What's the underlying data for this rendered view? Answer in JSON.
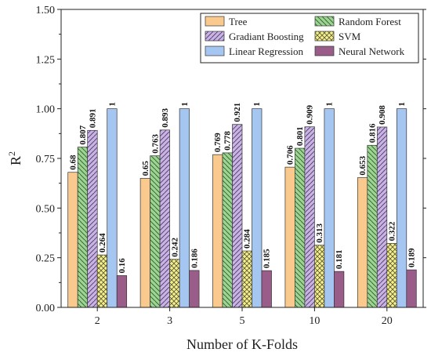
{
  "chart_data": {
    "type": "bar",
    "title": "",
    "xlabel": "Number of K-Folds",
    "ylabel": "R",
    "ylabel_sup": "2",
    "categories": [
      "2",
      "3",
      "5",
      "10",
      "20"
    ],
    "ylim": [
      0.0,
      1.5
    ],
    "yticks": [
      "0.00",
      "0.25",
      "0.50",
      "0.75",
      "1.00",
      "1.25",
      "1.50"
    ],
    "legend_position": "top-right",
    "grid": false,
    "series": [
      {
        "name": "Tree",
        "values": [
          0.68,
          0.65,
          0.769,
          0.706,
          0.653
        ],
        "labels": [
          "0.68",
          "0.65",
          "0.769",
          "0.706",
          "0.653"
        ],
        "color": "#f9c98e",
        "pattern": "none"
      },
      {
        "name": "Random Forest",
        "values": [
          0.807,
          0.763,
          0.778,
          0.801,
          0.816
        ],
        "labels": [
          "0.807",
          "0.763",
          "0.778",
          "0.801",
          "0.816"
        ],
        "color": "#9ed492",
        "pattern": "diag-back"
      },
      {
        "name": "Gradiant Boosting",
        "values": [
          0.891,
          0.893,
          0.921,
          0.909,
          0.908
        ],
        "labels": [
          "0.891",
          "0.893",
          "0.921",
          "0.909",
          "0.908"
        ],
        "color": "#c9b3e2",
        "pattern": "diag-fwd"
      },
      {
        "name": "SVM",
        "values": [
          0.264,
          0.242,
          0.284,
          0.313,
          0.322
        ],
        "labels": [
          "0.264",
          "0.242",
          "0.284",
          "0.313",
          "0.322"
        ],
        "color": "#f6f08c",
        "pattern": "cross"
      },
      {
        "name": "Linear Regression",
        "values": [
          1,
          1,
          1,
          1,
          1
        ],
        "labels": [
          "1",
          "1",
          "1",
          "1",
          "1"
        ],
        "color": "#a6c6f2",
        "pattern": "none"
      },
      {
        "name": "Neural Network",
        "values": [
          0.16,
          0.186,
          0.185,
          0.181,
          0.189
        ],
        "labels": [
          "0.16",
          "0.186",
          "0.185",
          "0.181",
          "0.189"
        ],
        "color": "#9a5d8a",
        "pattern": "none"
      }
    ]
  }
}
